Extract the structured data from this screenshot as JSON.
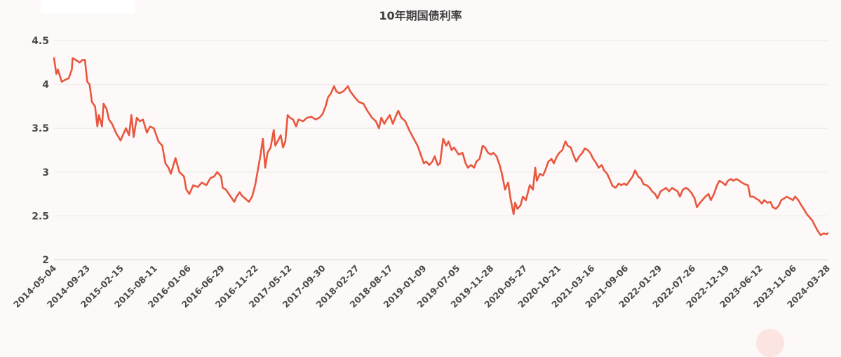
{
  "chart_data": {
    "type": "line",
    "title": "10年期国债利率",
    "xlabel": "",
    "ylabel": "",
    "ylim": [
      2,
      4.5
    ],
    "yticks": [
      "4.5",
      "4",
      "3.5",
      "3",
      "2.5",
      "2"
    ],
    "ytick_values": [
      4.5,
      4,
      3.5,
      3,
      2.5,
      2
    ],
    "grid": true,
    "legend": null,
    "line_color": "#e8573f",
    "x_tick_labels": [
      "2014-05-04",
      "2014-09-23",
      "2015-02-15",
      "2015-08-11",
      "2016-01-06",
      "2016-06-29",
      "2016-11-22",
      "2017-05-12",
      "2017-09-30",
      "2018-02-27",
      "2018-08-17",
      "2019-01-09",
      "2019-07-05",
      "2019-11-28",
      "2020-05-27",
      "2020-10-21",
      "2021-03-16",
      "2021-09-06",
      "2022-01-29",
      "2022-07-26",
      "2022-12-19",
      "2023-06-12",
      "2023-11-06",
      "2024-03-28"
    ],
    "series": [
      {
        "name": "10年期国债利率",
        "points_xfrac_value": [
          [
            0.0,
            4.3
          ],
          [
            0.003,
            4.12
          ],
          [
            0.005,
            4.17
          ],
          [
            0.01,
            4.03
          ],
          [
            0.014,
            4.05
          ],
          [
            0.019,
            4.07
          ],
          [
            0.023,
            4.17
          ],
          [
            0.024,
            4.3
          ],
          [
            0.028,
            4.28
          ],
          [
            0.033,
            4.25
          ],
          [
            0.037,
            4.28
          ],
          [
            0.04,
            4.28
          ],
          [
            0.043,
            4.03
          ],
          [
            0.046,
            4.0
          ],
          [
            0.049,
            3.8
          ],
          [
            0.053,
            3.75
          ],
          [
            0.056,
            3.52
          ],
          [
            0.058,
            3.65
          ],
          [
            0.062,
            3.52
          ],
          [
            0.064,
            3.78
          ],
          [
            0.068,
            3.72
          ],
          [
            0.071,
            3.6
          ],
          [
            0.075,
            3.55
          ],
          [
            0.08,
            3.45
          ],
          [
            0.086,
            3.36
          ],
          [
            0.093,
            3.5
          ],
          [
            0.097,
            3.42
          ],
          [
            0.1,
            3.65
          ],
          [
            0.103,
            3.4
          ],
          [
            0.107,
            3.62
          ],
          [
            0.111,
            3.58
          ],
          [
            0.115,
            3.6
          ],
          [
            0.12,
            3.45
          ],
          [
            0.124,
            3.52
          ],
          [
            0.129,
            3.5
          ],
          [
            0.135,
            3.35
          ],
          [
            0.14,
            3.3
          ],
          [
            0.144,
            3.1
          ],
          [
            0.148,
            3.05
          ],
          [
            0.151,
            2.98
          ],
          [
            0.157,
            3.16
          ],
          [
            0.162,
            3.0
          ],
          [
            0.168,
            2.95
          ],
          [
            0.171,
            2.8
          ],
          [
            0.175,
            2.75
          ],
          [
            0.18,
            2.85
          ],
          [
            0.186,
            2.83
          ],
          [
            0.191,
            2.88
          ],
          [
            0.197,
            2.85
          ],
          [
            0.202,
            2.93
          ],
          [
            0.207,
            2.95
          ],
          [
            0.211,
            3.0
          ],
          [
            0.216,
            2.95
          ],
          [
            0.218,
            2.82
          ],
          [
            0.222,
            2.8
          ],
          [
            0.226,
            2.75
          ],
          [
            0.233,
            2.66
          ],
          [
            0.236,
            2.72
          ],
          [
            0.24,
            2.77
          ],
          [
            0.243,
            2.73
          ],
          [
            0.247,
            2.7
          ],
          [
            0.252,
            2.66
          ],
          [
            0.256,
            2.72
          ],
          [
            0.26,
            2.85
          ],
          [
            0.264,
            3.05
          ],
          [
            0.267,
            3.2
          ],
          [
            0.27,
            3.38
          ],
          [
            0.273,
            3.05
          ],
          [
            0.276,
            3.22
          ],
          [
            0.28,
            3.28
          ],
          [
            0.284,
            3.48
          ],
          [
            0.286,
            3.3
          ],
          [
            0.289,
            3.35
          ],
          [
            0.293,
            3.42
          ],
          [
            0.296,
            3.28
          ],
          [
            0.299,
            3.35
          ],
          [
            0.302,
            3.65
          ],
          [
            0.305,
            3.62
          ],
          [
            0.309,
            3.6
          ],
          [
            0.313,
            3.52
          ],
          [
            0.316,
            3.6
          ],
          [
            0.322,
            3.58
          ],
          [
            0.327,
            3.62
          ],
          [
            0.333,
            3.63
          ],
          [
            0.338,
            3.6
          ],
          [
            0.343,
            3.62
          ],
          [
            0.347,
            3.66
          ],
          [
            0.351,
            3.75
          ],
          [
            0.354,
            3.85
          ],
          [
            0.358,
            3.9
          ],
          [
            0.362,
            3.98
          ],
          [
            0.365,
            3.92
          ],
          [
            0.369,
            3.9
          ],
          [
            0.374,
            3.92
          ],
          [
            0.38,
            3.98
          ],
          [
            0.383,
            3.92
          ],
          [
            0.389,
            3.85
          ],
          [
            0.394,
            3.8
          ],
          [
            0.4,
            3.78
          ],
          [
            0.405,
            3.7
          ],
          [
            0.411,
            3.62
          ],
          [
            0.416,
            3.58
          ],
          [
            0.42,
            3.5
          ],
          [
            0.423,
            3.62
          ],
          [
            0.427,
            3.55
          ],
          [
            0.43,
            3.6
          ],
          [
            0.434,
            3.65
          ],
          [
            0.438,
            3.55
          ],
          [
            0.441,
            3.62
          ],
          [
            0.445,
            3.7
          ],
          [
            0.449,
            3.62
          ],
          [
            0.454,
            3.58
          ],
          [
            0.459,
            3.48
          ],
          [
            0.465,
            3.38
          ],
          [
            0.47,
            3.3
          ],
          [
            0.474,
            3.2
          ],
          [
            0.478,
            3.1
          ],
          [
            0.481,
            3.12
          ],
          [
            0.485,
            3.08
          ],
          [
            0.489,
            3.12
          ],
          [
            0.492,
            3.18
          ],
          [
            0.496,
            3.08
          ],
          [
            0.499,
            3.1
          ],
          [
            0.503,
            3.38
          ],
          [
            0.507,
            3.3
          ],
          [
            0.51,
            3.35
          ],
          [
            0.514,
            3.25
          ],
          [
            0.517,
            3.28
          ],
          [
            0.523,
            3.2
          ],
          [
            0.528,
            3.22
          ],
          [
            0.532,
            3.1
          ],
          [
            0.535,
            3.05
          ],
          [
            0.539,
            3.08
          ],
          [
            0.543,
            3.05
          ],
          [
            0.546,
            3.12
          ],
          [
            0.55,
            3.15
          ],
          [
            0.554,
            3.3
          ],
          [
            0.557,
            3.28
          ],
          [
            0.561,
            3.22
          ],
          [
            0.565,
            3.2
          ],
          [
            0.568,
            3.22
          ],
          [
            0.572,
            3.18
          ],
          [
            0.576,
            3.08
          ],
          [
            0.579,
            2.98
          ],
          [
            0.583,
            2.8
          ],
          [
            0.587,
            2.88
          ],
          [
            0.59,
            2.7
          ],
          [
            0.594,
            2.52
          ],
          [
            0.596,
            2.65
          ],
          [
            0.599,
            2.58
          ],
          [
            0.603,
            2.62
          ],
          [
            0.606,
            2.72
          ],
          [
            0.61,
            2.68
          ],
          [
            0.615,
            2.85
          ],
          [
            0.619,
            2.8
          ],
          [
            0.622,
            3.05
          ],
          [
            0.624,
            2.9
          ],
          [
            0.628,
            2.98
          ],
          [
            0.632,
            2.96
          ],
          [
            0.635,
            3.02
          ],
          [
            0.639,
            3.12
          ],
          [
            0.643,
            3.15
          ],
          [
            0.646,
            3.1
          ],
          [
            0.65,
            3.18
          ],
          [
            0.653,
            3.22
          ],
          [
            0.657,
            3.25
          ],
          [
            0.661,
            3.35
          ],
          [
            0.664,
            3.3
          ],
          [
            0.668,
            3.28
          ],
          [
            0.672,
            3.18
          ],
          [
            0.675,
            3.12
          ],
          [
            0.679,
            3.18
          ],
          [
            0.683,
            3.22
          ],
          [
            0.686,
            3.27
          ],
          [
            0.69,
            3.25
          ],
          [
            0.693,
            3.22
          ],
          [
            0.697,
            3.15
          ],
          [
            0.701,
            3.1
          ],
          [
            0.704,
            3.05
          ],
          [
            0.708,
            3.08
          ],
          [
            0.711,
            3.02
          ],
          [
            0.715,
            2.98
          ],
          [
            0.719,
            2.9
          ],
          [
            0.722,
            2.84
          ],
          [
            0.726,
            2.82
          ],
          [
            0.73,
            2.87
          ],
          [
            0.733,
            2.85
          ],
          [
            0.737,
            2.87
          ],
          [
            0.74,
            2.85
          ],
          [
            0.744,
            2.9
          ],
          [
            0.748,
            2.95
          ],
          [
            0.751,
            3.02
          ],
          [
            0.755,
            2.95
          ],
          [
            0.759,
            2.92
          ],
          [
            0.762,
            2.86
          ],
          [
            0.766,
            2.85
          ],
          [
            0.77,
            2.82
          ],
          [
            0.773,
            2.78
          ],
          [
            0.777,
            2.75
          ],
          [
            0.78,
            2.7
          ],
          [
            0.784,
            2.78
          ],
          [
            0.788,
            2.8
          ],
          [
            0.791,
            2.82
          ],
          [
            0.795,
            2.78
          ],
          [
            0.799,
            2.82
          ],
          [
            0.802,
            2.8
          ],
          [
            0.806,
            2.78
          ],
          [
            0.809,
            2.72
          ],
          [
            0.813,
            2.8
          ],
          [
            0.817,
            2.82
          ],
          [
            0.82,
            2.8
          ],
          [
            0.824,
            2.76
          ],
          [
            0.828,
            2.7
          ],
          [
            0.831,
            2.6
          ],
          [
            0.835,
            2.65
          ],
          [
            0.838,
            2.68
          ],
          [
            0.842,
            2.72
          ],
          [
            0.846,
            2.75
          ],
          [
            0.849,
            2.68
          ],
          [
            0.853,
            2.75
          ],
          [
            0.857,
            2.85
          ],
          [
            0.86,
            2.9
          ],
          [
            0.864,
            2.88
          ],
          [
            0.868,
            2.85
          ],
          [
            0.871,
            2.9
          ],
          [
            0.875,
            2.92
          ],
          [
            0.878,
            2.9
          ],
          [
            0.882,
            2.92
          ],
          [
            0.886,
            2.9
          ],
          [
            0.889,
            2.88
          ],
          [
            0.893,
            2.86
          ],
          [
            0.897,
            2.85
          ],
          [
            0.9,
            2.72
          ],
          [
            0.904,
            2.72
          ],
          [
            0.907,
            2.7
          ],
          [
            0.911,
            2.68
          ],
          [
            0.915,
            2.64
          ],
          [
            0.918,
            2.68
          ],
          [
            0.922,
            2.65
          ],
          [
            0.926,
            2.66
          ],
          [
            0.929,
            2.6
          ],
          [
            0.933,
            2.58
          ],
          [
            0.937,
            2.62
          ],
          [
            0.94,
            2.68
          ],
          [
            0.944,
            2.7
          ],
          [
            0.947,
            2.72
          ],
          [
            0.951,
            2.7
          ],
          [
            0.955,
            2.68
          ],
          [
            0.958,
            2.72
          ],
          [
            0.962,
            2.68
          ],
          [
            0.966,
            2.62
          ],
          [
            0.969,
            2.58
          ],
          [
            0.973,
            2.52
          ],
          [
            0.977,
            2.48
          ],
          [
            0.98,
            2.45
          ],
          [
            0.984,
            2.38
          ],
          [
            0.987,
            2.33
          ],
          [
            0.991,
            2.28
          ],
          [
            0.995,
            2.3
          ],
          [
            0.998,
            2.29
          ],
          [
            1.0,
            2.3
          ]
        ]
      }
    ]
  }
}
